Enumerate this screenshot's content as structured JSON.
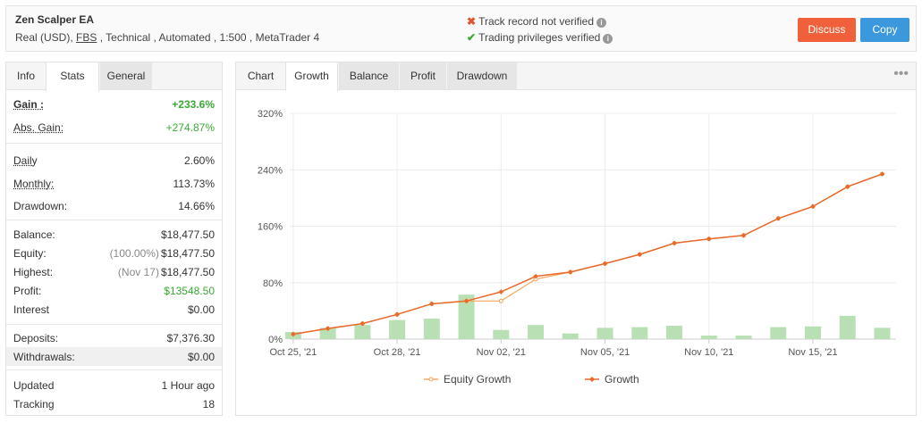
{
  "header": {
    "title": "Zen Scalper EA",
    "subtitle_prefix": "Real (USD), ",
    "subtitle_broker": "FBS",
    "subtitle_suffix": " , Technical , Automated , 1:500 , MetaTrader 4",
    "verify_track": "Track record not verified",
    "verify_trading": "Trading privileges verified",
    "discuss_label": "Discuss",
    "copy_label": "Copy"
  },
  "left_tabs": [
    "Info",
    "Stats",
    "General"
  ],
  "stats": {
    "gain_label": "Gain :",
    "gain_value": "+233.6%",
    "abs_gain_label": "Abs. Gain:",
    "abs_gain_value": "+274.87%",
    "daily_label": "Daily",
    "daily_value": "2.60%",
    "monthly_label": "Monthly:",
    "monthly_value": "113.73%",
    "drawdown_label": "Drawdown:",
    "drawdown_value": "14.66%",
    "balance_label": "Balance:",
    "balance_value": "$18,477.50",
    "equity_label": "Equity:",
    "equity_note": "(100.00%)",
    "equity_value": "$18,477.50",
    "highest_label": "Highest:",
    "highest_note": "(Nov 17)",
    "highest_value": "$18,477.50",
    "profit_label": "Profit:",
    "profit_value": "$13548.50",
    "interest_label": "Interest",
    "interest_value": "$0.00",
    "deposits_label": "Deposits:",
    "deposits_value": "$7,376.30",
    "withdrawals_label": "Withdrawals:",
    "withdrawals_value": "$0.00",
    "updated_label": "Updated",
    "updated_value": "1 Hour ago",
    "tracking_label": "Tracking",
    "tracking_value": "18"
  },
  "chart_tabs": [
    "Chart",
    "Growth",
    "Balance",
    "Profit",
    "Drawdown"
  ],
  "colors": {
    "line": "#e8692a",
    "equity": "#f5a55a",
    "bar": "#b8e0b4",
    "green": "#3aaa35",
    "discuss": "#f0603a",
    "copy": "#3b98dc"
  },
  "chart_data": {
    "type": "line",
    "y_ticks": [
      "0%",
      "80%",
      "160%",
      "240%",
      "320%"
    ],
    "ylim": [
      0,
      320
    ],
    "x_ticks": [
      {
        "label": "Oct 25, '21",
        "day": 0
      },
      {
        "label": "Oct 28, '21",
        "day": 3
      },
      {
        "label": "Nov 02, '21",
        "day": 6
      },
      {
        "label": "Nov 05, '21",
        "day": 9
      },
      {
        "label": "Nov 10, '21",
        "day": 12
      },
      {
        "label": "Nov 15, '21",
        "day": 15
      }
    ],
    "x_range": [
      -0.1,
      17.4
    ],
    "series": [
      {
        "name": "Equity Growth",
        "x": [
          0,
          1,
          2,
          3,
          4,
          5,
          6,
          7,
          8,
          9,
          10,
          11,
          12,
          13,
          14,
          15,
          16,
          17
        ],
        "values": [
          7,
          15,
          22,
          35,
          50,
          54,
          54,
          85,
          95,
          107,
          120,
          136,
          142,
          147,
          171,
          188,
          216,
          234
        ]
      },
      {
        "name": "Growth",
        "x": [
          0,
          1,
          2,
          3,
          4,
          5,
          6,
          7,
          8,
          9,
          10,
          11,
          12,
          13,
          14,
          15,
          16,
          17
        ],
        "values": [
          7,
          15,
          22,
          35,
          50,
          54,
          67,
          89,
          95,
          107,
          120,
          136,
          142,
          147,
          171,
          188,
          216,
          234
        ]
      }
    ],
    "bars": {
      "x": [
        0,
        1,
        2,
        3,
        4,
        5,
        6,
        7,
        8,
        9,
        10,
        11,
        12,
        13,
        14,
        15,
        16,
        17
      ],
      "values": [
        10,
        16,
        20,
        27,
        29,
        63,
        13,
        20,
        8,
        16,
        17,
        19,
        5,
        5,
        17,
        18,
        33,
        16
      ]
    },
    "grid": true,
    "legend_position": "bottom-center"
  }
}
